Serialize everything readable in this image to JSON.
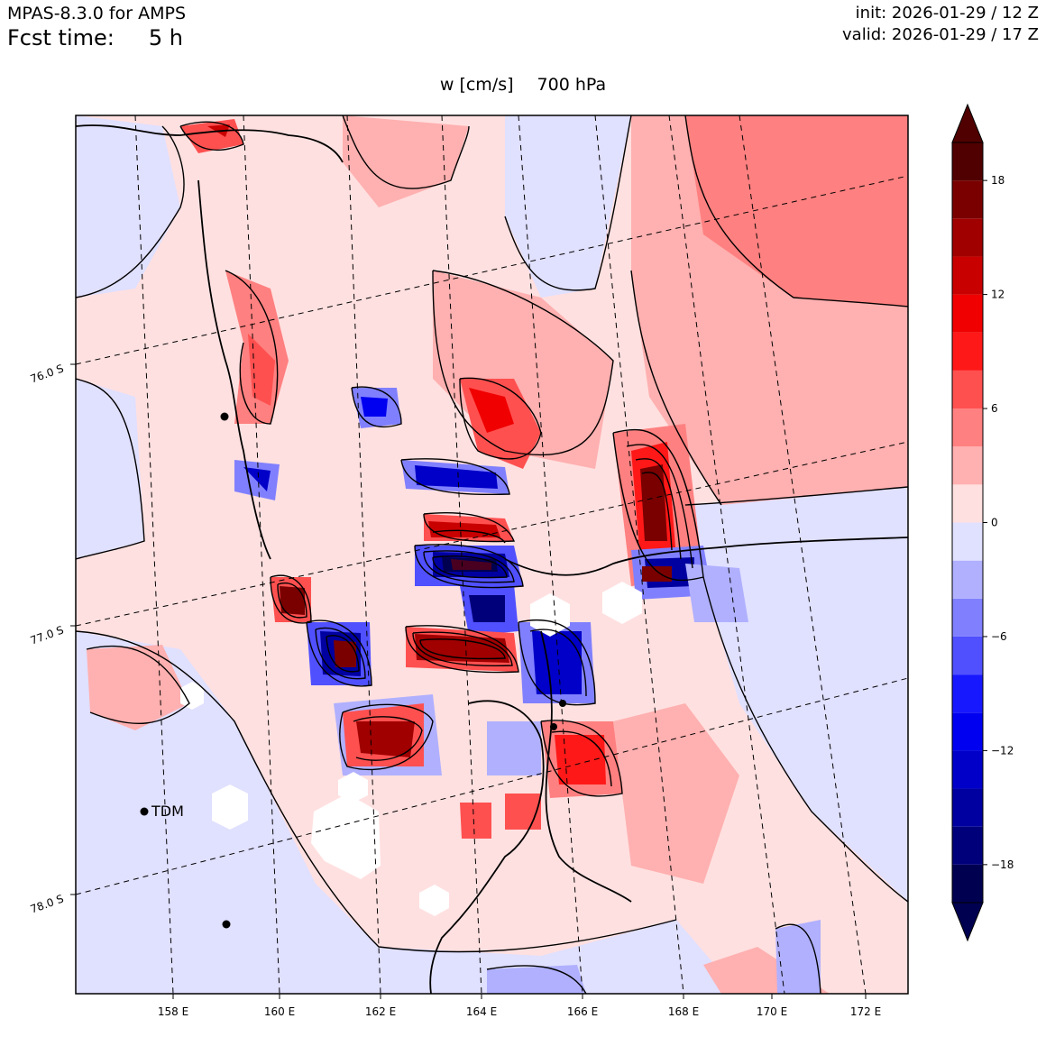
{
  "header": {
    "model": "MPAS-8.3.0 for AMPS",
    "fcst_label": "Fcst time:",
    "fcst_value": "5 h",
    "init": "init: 2026-01-29 / 12 Z",
    "valid": "valid: 2026-01-29 / 17 Z"
  },
  "title": {
    "variable": "w [cm/s]",
    "level": "700 hPa"
  },
  "map": {
    "lon_labels": [
      "158 E",
      "160 E",
      "162 E",
      "164 E",
      "166 E",
      "168 E",
      "170 E",
      "172 E"
    ],
    "lat_labels": [
      "76.0 S",
      "77.0 S",
      "78.0 S"
    ],
    "station": {
      "label": "TDM"
    }
  },
  "colorbar": {
    "units": "cm/s",
    "ticks": [
      "18",
      "12",
      "6",
      "0",
      "−6",
      "−12",
      "−18"
    ],
    "levels": [
      -20,
      -18,
      -16,
      -14,
      -12,
      -10,
      -8,
      -6,
      -4,
      -2,
      0,
      2,
      4,
      6,
      8,
      10,
      12,
      14,
      16,
      18,
      20
    ],
    "colors": [
      "#000050",
      "#00007a",
      "#0000a0",
      "#0000c8",
      "#0000f0",
      "#1818ff",
      "#5050ff",
      "#8080ff",
      "#b0b0ff",
      "#e0e0ff",
      "#ffe0e0",
      "#ffb0b0",
      "#ff8080",
      "#ff5050",
      "#ff1818",
      "#f00000",
      "#c80000",
      "#a00000",
      "#7a0000",
      "#500000"
    ],
    "extend_low_color": "#000050",
    "extend_high_color": "#500000"
  }
}
